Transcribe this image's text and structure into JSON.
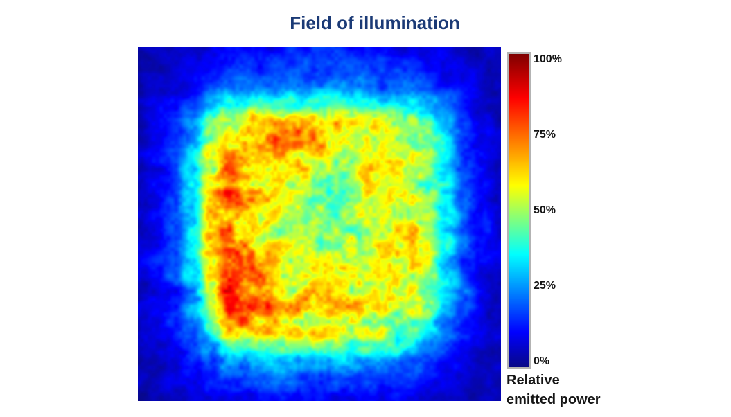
{
  "title": "Field of illumination",
  "colors": {
    "title": "#1b3a76",
    "tick_text": "#141414",
    "caption_text": "#161616",
    "colorbar_frame": "#b3b3b3",
    "background": "#ffffff"
  },
  "colorbar": {
    "ticks": [
      {
        "label": "100%",
        "value": 1.0
      },
      {
        "label": "75%",
        "value": 0.75
      },
      {
        "label": "50%",
        "value": 0.5
      },
      {
        "label": "25%",
        "value": 0.25
      },
      {
        "label": "0%",
        "value": 0.0
      }
    ],
    "caption_line1": "Relative",
    "caption_line2": "emitted power"
  },
  "chart_data": {
    "type": "heatmap",
    "title": "Field of illumination",
    "colorbar_label": "Relative emitted power",
    "units": "% relative emitted power",
    "value_range": [
      0,
      100
    ],
    "legend_position": "right",
    "colormap": "jet",
    "colormap_stops": [
      [
        0.0,
        8,
        8,
        135
      ],
      [
        0.11,
        0,
        0,
        255
      ],
      [
        0.36,
        0,
        255,
        255
      ],
      [
        0.58,
        255,
        255,
        0
      ],
      [
        0.86,
        255,
        0,
        0
      ],
      [
        1.0,
        128,
        0,
        0
      ]
    ],
    "grid": {
      "cols": 21,
      "rows": 20,
      "values": [
        [
          3,
          4,
          5,
          6,
          8,
          9,
          10,
          11,
          11,
          12,
          12,
          12,
          11,
          11,
          10,
          9,
          8,
          6,
          5,
          4,
          3
        ],
        [
          4,
          5,
          6,
          8,
          11,
          13,
          14,
          15,
          16,
          16,
          16,
          16,
          15,
          15,
          14,
          13,
          11,
          9,
          7,
          5,
          4
        ],
        [
          4,
          6,
          8,
          11,
          15,
          18,
          20,
          21,
          22,
          22,
          22,
          22,
          21,
          21,
          20,
          18,
          16,
          12,
          9,
          6,
          4
        ],
        [
          5,
          7,
          10,
          16,
          24,
          32,
          36,
          38,
          38,
          38,
          38,
          38,
          37,
          37,
          36,
          33,
          28,
          20,
          12,
          8,
          5
        ],
        [
          5,
          8,
          13,
          24,
          42,
          58,
          64,
          65,
          63,
          61,
          60,
          61,
          60,
          59,
          56,
          51,
          41,
          27,
          15,
          9,
          5
        ],
        [
          6,
          9,
          15,
          28,
          52,
          67,
          70,
          68,
          64,
          61,
          59,
          58,
          57,
          56,
          55,
          52,
          45,
          30,
          17,
          10,
          6
        ],
        [
          6,
          9,
          16,
          30,
          55,
          68,
          66,
          61,
          57,
          54,
          53,
          52,
          53,
          54,
          55,
          52,
          46,
          32,
          18,
          10,
          6
        ],
        [
          7,
          10,
          16,
          31,
          57,
          69,
          64,
          58,
          54,
          52,
          50,
          50,
          51,
          53,
          55,
          53,
          47,
          33,
          18,
          10,
          7
        ],
        [
          7,
          10,
          17,
          32,
          58,
          71,
          65,
          58,
          53,
          50,
          48,
          49,
          51,
          54,
          56,
          54,
          48,
          33,
          18,
          10,
          7
        ],
        [
          7,
          10,
          17,
          33,
          60,
          74,
          67,
          58,
          52,
          49,
          48,
          48,
          51,
          54,
          56,
          54,
          48,
          33,
          18,
          10,
          7
        ],
        [
          7,
          10,
          17,
          33,
          61,
          75,
          67,
          58,
          53,
          50,
          49,
          50,
          52,
          55,
          57,
          55,
          48,
          33,
          18,
          10,
          7
        ],
        [
          7,
          10,
          17,
          33,
          60,
          74,
          66,
          59,
          55,
          52,
          51,
          52,
          54,
          56,
          57,
          55,
          48,
          33,
          18,
          10,
          7
        ],
        [
          7,
          10,
          16,
          32,
          58,
          72,
          67,
          62,
          58,
          56,
          55,
          56,
          57,
          58,
          58,
          55,
          47,
          32,
          17,
          10,
          7
        ],
        [
          6,
          9,
          16,
          31,
          56,
          71,
          70,
          66,
          63,
          62,
          61,
          62,
          62,
          62,
          60,
          55,
          46,
          31,
          17,
          9,
          6
        ],
        [
          6,
          9,
          15,
          30,
          54,
          72,
          73,
          69,
          66,
          64,
          63,
          64,
          63,
          62,
          58,
          52,
          43,
          29,
          16,
          9,
          6
        ],
        [
          6,
          8,
          14,
          26,
          46,
          64,
          68,
          65,
          62,
          60,
          59,
          59,
          58,
          55,
          50,
          44,
          36,
          24,
          13,
          8,
          6
        ],
        [
          5,
          7,
          11,
          18,
          30,
          41,
          45,
          46,
          45,
          43,
          42,
          42,
          41,
          40,
          37,
          33,
          26,
          17,
          10,
          7,
          5
        ],
        [
          4,
          6,
          9,
          13,
          19,
          24,
          27,
          28,
          28,
          28,
          27,
          27,
          26,
          25,
          23,
          20,
          16,
          11,
          8,
          6,
          4
        ],
        [
          4,
          5,
          7,
          9,
          12,
          15,
          17,
          18,
          18,
          18,
          18,
          17,
          17,
          16,
          15,
          13,
          11,
          8,
          6,
          5,
          4
        ],
        [
          3,
          4,
          5,
          6,
          8,
          9,
          10,
          11,
          11,
          11,
          11,
          11,
          10,
          10,
          9,
          8,
          7,
          6,
          5,
          4,
          3
        ]
      ]
    },
    "noise": {
      "seed": 11,
      "base_amplitude": 2.5,
      "value_amplitude": 0.18,
      "scales": [
        44,
        22,
        11,
        5.5
      ],
      "weights": [
        0.22,
        0.34,
        0.27,
        0.17
      ]
    }
  }
}
